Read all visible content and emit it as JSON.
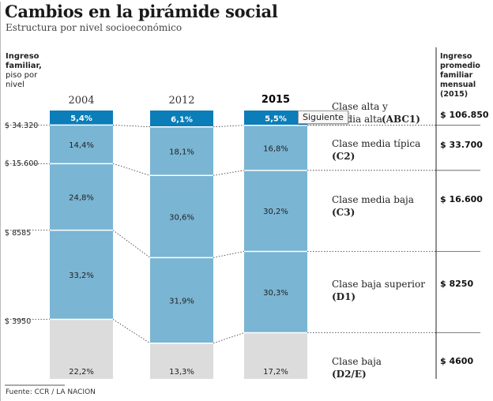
{
  "title": "Cambios en la pirámide social",
  "subtitle": "Estructura por nivel socioeconómico",
  "left_header": {
    "lines": [
      "Ingreso",
      "familiar,",
      "piso por",
      "nivel"
    ]
  },
  "right_header": {
    "lines": [
      "Ingreso",
      "promedio",
      "familiar",
      "mensual",
      "(2015)"
    ]
  },
  "income_floors": [
    "$ 34.320",
    "$ 15.600",
    "$ 8585",
    "$ 3950"
  ],
  "classes": [
    {
      "name": "Clase alta y media alta",
      "code": "(ABC1)",
      "income": "$ 106.850"
    },
    {
      "name": "Clase media típica",
      "code": "(C2)",
      "income": "$ 33.700"
    },
    {
      "name": "Clase media baja",
      "code": "(C3)",
      "income": "$ 16.600"
    },
    {
      "name": "Clase baja superior",
      "code": "(D1)",
      "income": "$ 8250"
    },
    {
      "name": "Clase baja",
      "code": "(D2/E)",
      "income": "$ 4600"
    }
  ],
  "source": "Fuente: CCR / LA NACION",
  "tooltip": "Siguiente",
  "colors": {
    "top": "#0b7db8",
    "middle": "#7ab5d3",
    "bottom": "#dcdcdc",
    "grid": "#9b9b9b",
    "divider": "#ffffff"
  },
  "chart_data": {
    "type": "bar",
    "stacked": true,
    "orientation": "vertical",
    "categories": [
      "2004",
      "2012",
      "2015"
    ],
    "highlight_category": "2015",
    "series": [
      {
        "name": "Clase alta y media alta (ABC1)",
        "values": [
          5.4,
          6.1,
          5.5
        ],
        "labels": [
          "5,4%",
          "6,1%",
          "5,5%"
        ]
      },
      {
        "name": "Clase media típica (C2)",
        "values": [
          14.4,
          18.1,
          16.8
        ],
        "labels": [
          "14,4%",
          "18,1%",
          "16,8%"
        ]
      },
      {
        "name": "Clase media baja (C3)",
        "values": [
          24.8,
          30.6,
          30.2
        ],
        "labels": [
          "24,8%",
          "30,6%",
          "30,2%"
        ]
      },
      {
        "name": "Clase baja superior (D1)",
        "values": [
          33.2,
          31.9,
          30.3
        ],
        "labels": [
          "33,2%",
          "31,9%",
          "30,3%"
        ]
      },
      {
        "name": "Clase baja (D2/E)",
        "values": [
          22.2,
          13.3,
          17.2
        ],
        "labels": [
          "22,2%",
          "13,3%",
          "17,2%"
        ]
      }
    ],
    "unit": "%"
  }
}
